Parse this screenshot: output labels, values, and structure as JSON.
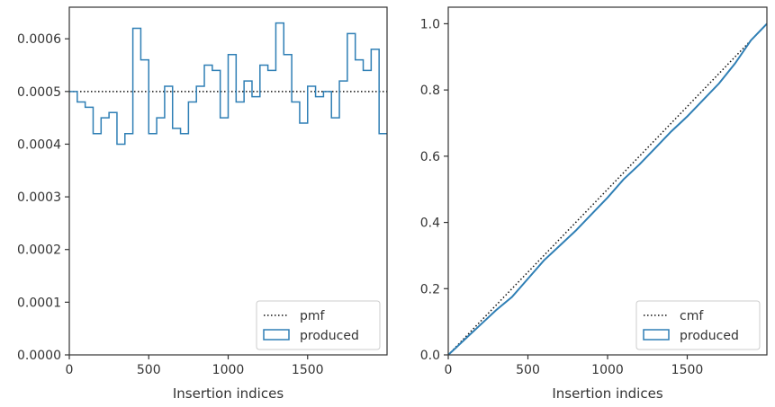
{
  "colors": {
    "hist": "#2f7fb5",
    "reference": "#111111",
    "axes": "#333333",
    "legend_border": "#cccccc"
  },
  "chart_data": [
    {
      "type": "step-histogram",
      "xlabel": "Insertion indices",
      "xlim": [
        0,
        2000
      ],
      "ylim": [
        0,
        0.00066
      ],
      "xticks": [
        0,
        500,
        1000,
        1500
      ],
      "xtick_labels": [
        "0",
        "500",
        "1000",
        "1500"
      ],
      "yticks": [
        0,
        0.0001,
        0.0002,
        0.0003,
        0.0004,
        0.0005,
        0.0006
      ],
      "ytick_labels": [
        "0.0000",
        "0.0001",
        "0.0002",
        "0.0003",
        "0.0004",
        "0.0005",
        "0.0006"
      ],
      "legend": {
        "placement": "lower-right",
        "entries": [
          "pmf",
          "produced"
        ]
      },
      "reference": {
        "name": "pmf",
        "y": 0.0005,
        "style": "dotted"
      },
      "series": [
        {
          "name": "produced",
          "bin_edges": [
            0,
            50,
            100,
            150,
            200,
            250,
            300,
            350,
            400,
            450,
            500,
            550,
            600,
            650,
            700,
            750,
            800,
            850,
            900,
            950,
            1000,
            1050,
            1100,
            1150,
            1200,
            1250,
            1300,
            1350,
            1400,
            1450,
            1500,
            1550,
            1600,
            1650,
            1700,
            1750,
            1800,
            1850,
            1900,
            1950,
            2000
          ],
          "values": [
            0.0005,
            0.00048,
            0.00047,
            0.00042,
            0.00045,
            0.00046,
            0.0004,
            0.00042,
            0.00062,
            0.00056,
            0.00042,
            0.00045,
            0.00051,
            0.00043,
            0.00042,
            0.00048,
            0.00051,
            0.00055,
            0.00054,
            0.00045,
            0.00057,
            0.00048,
            0.00052,
            0.00049,
            0.00055,
            0.00054,
            0.00063,
            0.00057,
            0.00048,
            0.00044,
            0.00051,
            0.00049,
            0.0005,
            0.00045,
            0.00052,
            0.00061,
            0.00056,
            0.00054,
            0.00058,
            0.00042
          ]
        }
      ]
    },
    {
      "type": "line",
      "xlabel": "Insertion indices",
      "xlim": [
        0,
        2000
      ],
      "ylim": [
        0,
        1.05
      ],
      "xticks": [
        0,
        500,
        1000,
        1500
      ],
      "xtick_labels": [
        "0",
        "500",
        "1000",
        "1500"
      ],
      "yticks": [
        0,
        0.2,
        0.4,
        0.6,
        0.8,
        1.0
      ],
      "ytick_labels": [
        "0.0",
        "0.2",
        "0.4",
        "0.6",
        "0.8",
        "1.0"
      ],
      "legend": {
        "placement": "lower-right",
        "entries": [
          "cmf",
          "produced"
        ]
      },
      "reference": {
        "name": "cmf",
        "x": [
          0,
          2000
        ],
        "y": [
          0,
          1.0
        ],
        "style": "dotted"
      },
      "series": [
        {
          "name": "produced",
          "x": [
            0,
            100,
            200,
            300,
            400,
            500,
            600,
            700,
            800,
            900,
            1000,
            1100,
            1200,
            1300,
            1400,
            1500,
            1600,
            1700,
            1800,
            1900,
            2000
          ],
          "y": [
            0,
            0.045,
            0.09,
            0.135,
            0.175,
            0.23,
            0.285,
            0.33,
            0.375,
            0.425,
            0.475,
            0.53,
            0.575,
            0.625,
            0.675,
            0.72,
            0.77,
            0.82,
            0.88,
            0.95,
            1.0
          ]
        }
      ]
    }
  ]
}
